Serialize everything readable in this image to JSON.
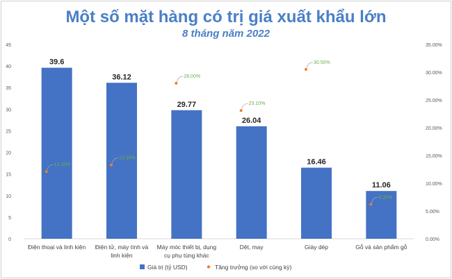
{
  "title": "Một số mặt hàng có trị giá xuất khẩu lớn",
  "subtitle": "8 tháng năm 2022",
  "colors": {
    "bar": "#4472c4",
    "growth_point": "#ed7d31",
    "growth_label": "#70ad47",
    "title": "#4a7fc7"
  },
  "chart_data": {
    "type": "bar",
    "categories": [
      [
        "Điện thoại và linh kiện"
      ],
      [
        "Điện tử, máy tính và",
        "linh kiện"
      ],
      [
        "Máy móc thiết bị, dụng",
        "cụ phụ tùng khác"
      ],
      [
        "Dệt, may"
      ],
      [
        "Giày dép"
      ],
      [
        "Gỗ và sản phẩm gỗ"
      ]
    ],
    "series": [
      {
        "name": "Giá trị (tỷ USD)",
        "type": "bar",
        "axis": "left",
        "values": [
          39.6,
          36.12,
          29.77,
          26.04,
          16.46,
          11.06
        ],
        "labels": [
          "39.6",
          "36.12",
          "29.77",
          "26.04",
          "16.46",
          "11.06"
        ]
      },
      {
        "name": "Tăng trưởng (so với cùng kỳ)",
        "type": "scatter",
        "axis": "right",
        "values": [
          12.1,
          13.3,
          28.0,
          23.1,
          30.5,
          6.2
        ],
        "labels": [
          "12.10%",
          "13.30%",
          "28.00%",
          "23.10%",
          "30.50%",
          "6.20%"
        ]
      }
    ],
    "y_left": {
      "min": 0,
      "max": 45,
      "ticks": [
        "0",
        "5",
        "10",
        "15",
        "20",
        "25",
        "30",
        "35",
        "40",
        "45"
      ]
    },
    "y_right": {
      "min": 0,
      "max": 35,
      "ticks": [
        "0.00%",
        "5.00%",
        "10.00%",
        "15.00%",
        "20.00%",
        "25.00%",
        "30.00%",
        "35.00%"
      ]
    },
    "grid": false,
    "legend": "bottom"
  }
}
